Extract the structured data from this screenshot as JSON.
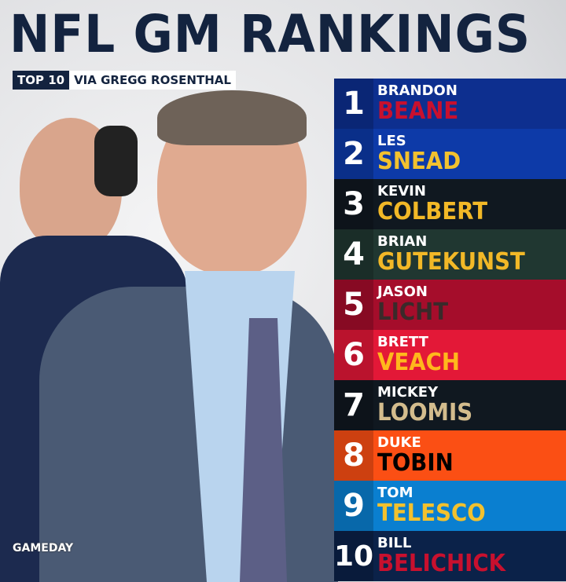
{
  "title": "NFL GM RANKINGS",
  "subtitle": {
    "tag": "TOP 10",
    "source": "VIA GREGG ROSENTHAL"
  },
  "rankings": [
    {
      "rank": "1",
      "first": "BRANDON",
      "last": "BEANE",
      "bg": "#0d2f8f",
      "last_color": "#c8102e"
    },
    {
      "rank": "2",
      "first": "LES",
      "last": "SNEAD",
      "bg": "#0d3aa8",
      "last_color": "#f2c12e"
    },
    {
      "rank": "3",
      "first": "KEVIN",
      "last": "COLBERT",
      "bg": "#101820",
      "last_color": "#f2b827"
    },
    {
      "rank": "4",
      "first": "BRIAN",
      "last": "GUTEKUNST",
      "bg": "#203731",
      "last_color": "#f2b827"
    },
    {
      "rank": "5",
      "first": "JASON",
      "last": "LICHT",
      "bg": "#a50d2b",
      "last_color": "#3a2a2a"
    },
    {
      "rank": "6",
      "first": "BRETT",
      "last": "VEACH",
      "bg": "#e31837",
      "last_color": "#ffb81c"
    },
    {
      "rank": "7",
      "first": "MICKEY",
      "last": "LOOMIS",
      "bg": "#101820",
      "last_color": "#d3bc8d"
    },
    {
      "rank": "8",
      "first": "DUKE",
      "last": "TOBIN",
      "bg": "#fb4f14",
      "last_color": "#000000"
    },
    {
      "rank": "9",
      "first": "TOM",
      "last": "TELESCO",
      "bg": "#0a7fd0",
      "last_color": "#f2c12e"
    },
    {
      "rank": "10",
      "first": "BILL",
      "last": "BELICHICK",
      "bg": "#0b2249",
      "last_color": "#c8102e"
    }
  ],
  "logo": "GAMEDAY"
}
